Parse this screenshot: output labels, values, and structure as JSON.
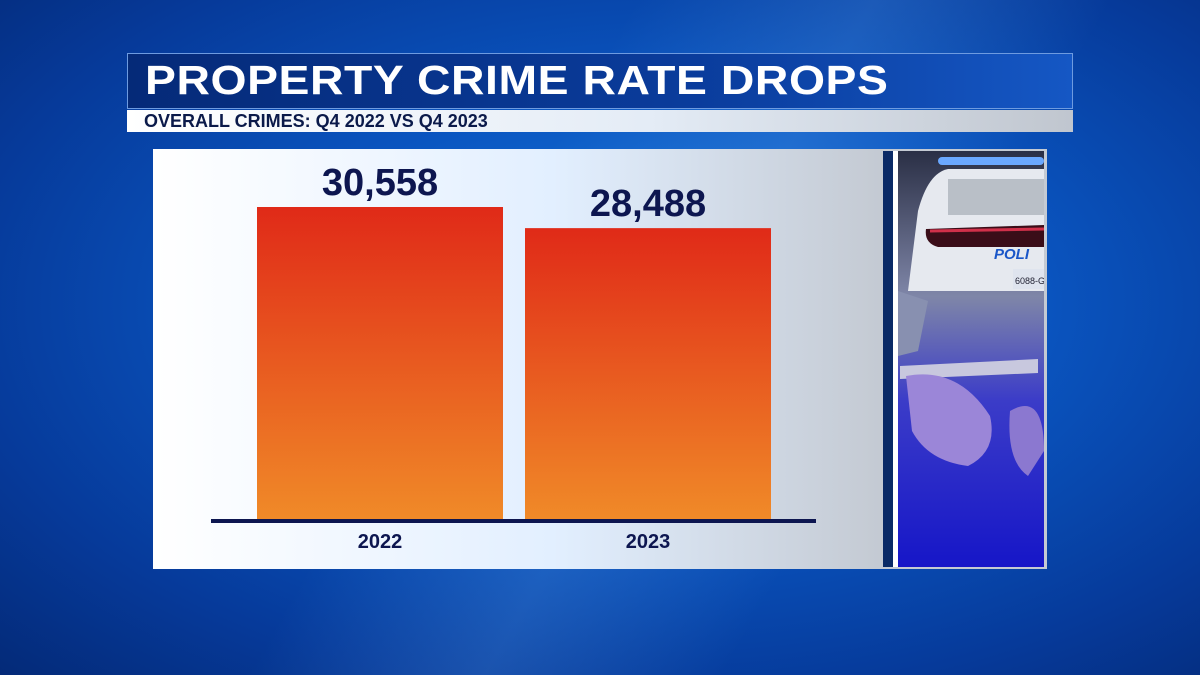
{
  "header": {
    "title": "PROPERTY CRIME RATE DROPS",
    "subtitle": "OVERALL CRIMES: Q4 2022 VS Q4 2023"
  },
  "photo": {
    "description_icon": "police-car-handcuffs-photo",
    "car_lettering": "POLI",
    "plate": "6088-G"
  },
  "colors": {
    "bar_top": "#e02a18",
    "bar_bottom": "#f08a28",
    "axis": "#0d1650",
    "background": "#0a55c0"
  },
  "chart_data": {
    "type": "bar",
    "title": "PROPERTY CRIME RATE DROPS",
    "subtitle": "OVERALL CRIMES: Q4 2022 VS Q4 2023",
    "categories": [
      "2022",
      "2023"
    ],
    "values": [
      30558,
      28488
    ],
    "data_labels": [
      "30,558",
      "28,488"
    ],
    "xlabel": "",
    "ylabel": "",
    "ylim": [
      0,
      30558
    ],
    "grid": false,
    "legend": "none"
  }
}
